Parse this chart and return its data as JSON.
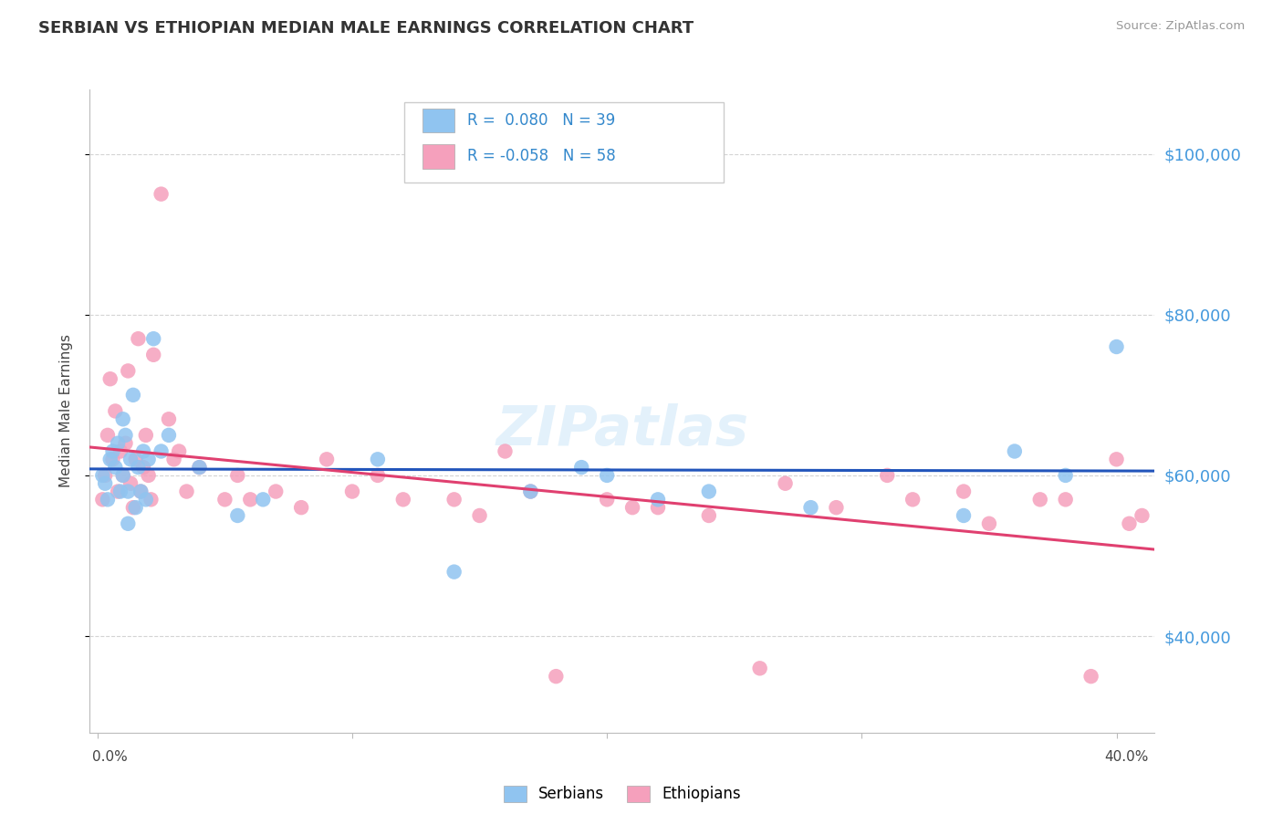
{
  "title": "SERBIAN VS ETHIOPIAN MEDIAN MALE EARNINGS CORRELATION CHART",
  "source": "Source: ZipAtlas.com",
  "ylabel": "Median Male Earnings",
  "y_tick_values": [
    40000,
    60000,
    80000,
    100000
  ],
  "y_min": 28000,
  "y_max": 108000,
  "x_min": -0.003,
  "x_max": 0.415,
  "serbia_color": "#90c4f0",
  "ethiopia_color": "#f5a0bc",
  "serbia_line_color": "#2255bb",
  "ethiopia_line_color": "#e04070",
  "right_label_color": "#4499dd",
  "grid_color": "#d0d0d0",
  "background_color": "#ffffff",
  "serbia_x": [
    0.002,
    0.003,
    0.004,
    0.005,
    0.006,
    0.007,
    0.008,
    0.009,
    0.01,
    0.01,
    0.011,
    0.012,
    0.012,
    0.013,
    0.014,
    0.015,
    0.016,
    0.017,
    0.018,
    0.019,
    0.02,
    0.022,
    0.025,
    0.028,
    0.04,
    0.055,
    0.065,
    0.11,
    0.14,
    0.17,
    0.19,
    0.2,
    0.22,
    0.24,
    0.28,
    0.34,
    0.36,
    0.38,
    0.4
  ],
  "serbia_y": [
    60000,
    59000,
    57000,
    62000,
    63000,
    61000,
    64000,
    58000,
    67000,
    60000,
    65000,
    58000,
    54000,
    62000,
    70000,
    56000,
    61000,
    58000,
    63000,
    57000,
    62000,
    77000,
    63000,
    65000,
    61000,
    55000,
    57000,
    62000,
    48000,
    58000,
    61000,
    60000,
    57000,
    58000,
    56000,
    55000,
    63000,
    60000,
    76000
  ],
  "ethiopia_x": [
    0.002,
    0.003,
    0.004,
    0.005,
    0.006,
    0.007,
    0.008,
    0.009,
    0.01,
    0.011,
    0.012,
    0.013,
    0.014,
    0.015,
    0.016,
    0.017,
    0.018,
    0.019,
    0.02,
    0.021,
    0.022,
    0.025,
    0.028,
    0.03,
    0.032,
    0.035,
    0.04,
    0.05,
    0.055,
    0.06,
    0.07,
    0.08,
    0.09,
    0.1,
    0.11,
    0.12,
    0.14,
    0.15,
    0.16,
    0.17,
    0.18,
    0.2,
    0.21,
    0.22,
    0.24,
    0.26,
    0.27,
    0.29,
    0.31,
    0.32,
    0.34,
    0.35,
    0.37,
    0.38,
    0.39,
    0.4,
    0.405,
    0.41
  ],
  "ethiopia_y": [
    57000,
    60000,
    65000,
    72000,
    62000,
    68000,
    58000,
    63000,
    60000,
    64000,
    73000,
    59000,
    56000,
    62000,
    77000,
    58000,
    61000,
    65000,
    60000,
    57000,
    75000,
    95000,
    67000,
    62000,
    63000,
    58000,
    61000,
    57000,
    60000,
    57000,
    58000,
    56000,
    62000,
    58000,
    60000,
    57000,
    57000,
    55000,
    63000,
    58000,
    35000,
    57000,
    56000,
    56000,
    55000,
    36000,
    59000,
    56000,
    60000,
    57000,
    58000,
    54000,
    57000,
    57000,
    35000,
    62000,
    54000,
    55000
  ]
}
